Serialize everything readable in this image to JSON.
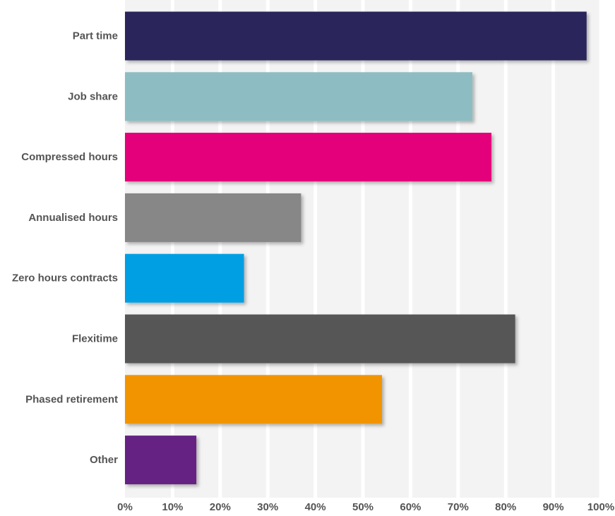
{
  "chart_data": {
    "type": "bar",
    "orientation": "horizontal",
    "categories": [
      "Part time",
      "Job share",
      "Compressed hours",
      "Annualised hours",
      "Zero hours contracts",
      "Flexitime",
      "Phased retirement",
      "Other"
    ],
    "values": [
      97,
      73,
      77,
      37,
      25,
      82,
      54,
      15
    ],
    "bar_colors": [
      "#29255c",
      "#8dbdc2",
      "#e3007a",
      "#878787",
      "#009fe3",
      "#575756",
      "#f29400",
      "#662483"
    ],
    "xlim": [
      0,
      100
    ],
    "x_ticks": [
      0,
      10,
      20,
      30,
      40,
      50,
      60,
      70,
      80,
      90,
      100
    ],
    "x_tick_labels": [
      "0%",
      "10%",
      "20%",
      "30%",
      "40%",
      "50%",
      "60%",
      "70%",
      "80%",
      "90%",
      "100%"
    ],
    "grid": true,
    "plot_background": "#f3f3f3",
    "grid_color": "#ffffff",
    "label_color": "#545454",
    "title": "",
    "xlabel": "",
    "ylabel": ""
  }
}
